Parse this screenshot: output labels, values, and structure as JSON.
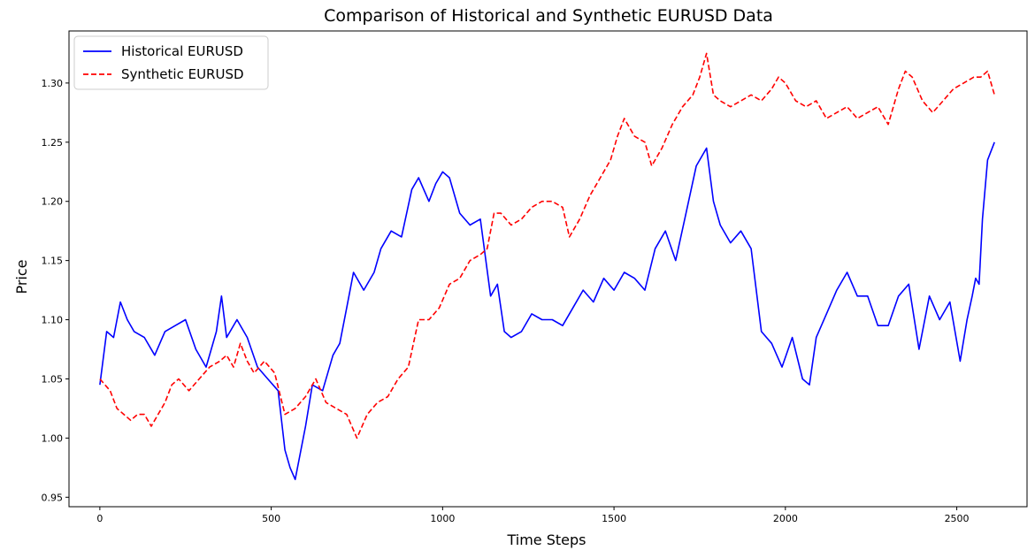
{
  "chart_data": {
    "type": "line",
    "title": "Comparison of Historical and Synthetic EURUSD Data",
    "xlabel": "Time Steps",
    "ylabel": "Price",
    "xlim": [
      -90,
      2705
    ],
    "ylim": [
      0.942,
      1.344
    ],
    "xticks": [
      0,
      500,
      1000,
      1500,
      2000,
      2500
    ],
    "xtick_labels": [
      "0",
      "500",
      "1000",
      "1500",
      "2000",
      "2500"
    ],
    "yticks": [
      0.95,
      1.0,
      1.05,
      1.1,
      1.15,
      1.2,
      1.25,
      1.3
    ],
    "ytick_labels": [
      "0.95",
      "1.00",
      "1.05",
      "1.10",
      "1.15",
      "1.20",
      "1.25",
      "1.30"
    ],
    "grid": false,
    "legend_position": "top-left",
    "series": [
      {
        "name": "Historical EURUSD",
        "color": "#0000ff",
        "style": "solid",
        "x": [
          0,
          20,
          40,
          60,
          80,
          100,
          130,
          160,
          190,
          220,
          250,
          280,
          310,
          340,
          355,
          370,
          400,
          430,
          460,
          490,
          520,
          540,
          555,
          570,
          600,
          620,
          650,
          680,
          700,
          720,
          740,
          770,
          800,
          820,
          850,
          880,
          910,
          930,
          960,
          980,
          1000,
          1020,
          1050,
          1080,
          1110,
          1140,
          1160,
          1180,
          1200,
          1230,
          1260,
          1290,
          1320,
          1350,
          1380,
          1410,
          1440,
          1470,
          1500,
          1530,
          1560,
          1590,
          1620,
          1650,
          1680,
          1710,
          1740,
          1770,
          1790,
          1810,
          1840,
          1870,
          1900,
          1930,
          1960,
          1990,
          2020,
          2050,
          2070,
          2090,
          2120,
          2150,
          2180,
          2210,
          2240,
          2270,
          2300,
          2330,
          2360,
          2390,
          2420,
          2450,
          2480,
          2510,
          2530,
          2545,
          2555,
          2565,
          2575,
          2590,
          2610
        ],
        "y": [
          1.045,
          1.09,
          1.085,
          1.115,
          1.1,
          1.09,
          1.085,
          1.07,
          1.09,
          1.095,
          1.1,
          1.075,
          1.06,
          1.09,
          1.12,
          1.085,
          1.1,
          1.085,
          1.06,
          1.05,
          1.04,
          0.99,
          0.975,
          0.965,
          1.01,
          1.045,
          1.04,
          1.07,
          1.08,
          1.11,
          1.14,
          1.125,
          1.14,
          1.16,
          1.175,
          1.17,
          1.21,
          1.22,
          1.2,
          1.215,
          1.225,
          1.22,
          1.19,
          1.18,
          1.185,
          1.12,
          1.13,
          1.09,
          1.085,
          1.09,
          1.105,
          1.1,
          1.1,
          1.095,
          1.11,
          1.125,
          1.115,
          1.135,
          1.125,
          1.14,
          1.135,
          1.125,
          1.16,
          1.175,
          1.15,
          1.19,
          1.23,
          1.245,
          1.2,
          1.18,
          1.165,
          1.175,
          1.16,
          1.09,
          1.08,
          1.06,
          1.085,
          1.05,
          1.045,
          1.085,
          1.105,
          1.125,
          1.14,
          1.12,
          1.12,
          1.095,
          1.095,
          1.12,
          1.13,
          1.075,
          1.12,
          1.1,
          1.115,
          1.065,
          1.1,
          1.12,
          1.135,
          1.13,
          1.185,
          1.235,
          1.25
        ]
      },
      {
        "name": "Synthetic EURUSD",
        "color": "#ff0000",
        "style": "dashed",
        "x": [
          0,
          15,
          30,
          50,
          70,
          90,
          110,
          130,
          150,
          170,
          190,
          210,
          230,
          260,
          290,
          320,
          350,
          370,
          390,
          410,
          430,
          450,
          480,
          510,
          540,
          570,
          600,
          630,
          660,
          690,
          720,
          750,
          780,
          810,
          840,
          870,
          900,
          930,
          960,
          990,
          1020,
          1050,
          1080,
          1110,
          1130,
          1150,
          1170,
          1200,
          1230,
          1260,
          1290,
          1320,
          1350,
          1370,
          1400,
          1430,
          1460,
          1490,
          1510,
          1530,
          1560,
          1590,
          1610,
          1640,
          1670,
          1700,
          1730,
          1750,
          1770,
          1790,
          1810,
          1840,
          1870,
          1900,
          1930,
          1960,
          1980,
          2000,
          2030,
          2060,
          2090,
          2120,
          2150,
          2180,
          2210,
          2240,
          2270,
          2300,
          2330,
          2350,
          2370,
          2400,
          2430,
          2460,
          2490,
          2520,
          2550,
          2570,
          2590,
          2610
        ],
        "y": [
          1.05,
          1.045,
          1.04,
          1.025,
          1.02,
          1.015,
          1.02,
          1.02,
          1.01,
          1.02,
          1.03,
          1.045,
          1.05,
          1.04,
          1.05,
          1.06,
          1.065,
          1.07,
          1.06,
          1.08,
          1.065,
          1.055,
          1.065,
          1.055,
          1.02,
          1.025,
          1.035,
          1.05,
          1.03,
          1.025,
          1.02,
          1.0,
          1.02,
          1.03,
          1.035,
          1.05,
          1.06,
          1.1,
          1.1,
          1.11,
          1.13,
          1.135,
          1.15,
          1.155,
          1.16,
          1.19,
          1.19,
          1.18,
          1.185,
          1.195,
          1.2,
          1.2,
          1.195,
          1.17,
          1.185,
          1.205,
          1.22,
          1.235,
          1.255,
          1.27,
          1.255,
          1.25,
          1.23,
          1.245,
          1.265,
          1.28,
          1.29,
          1.305,
          1.325,
          1.29,
          1.285,
          1.28,
          1.285,
          1.29,
          1.285,
          1.295,
          1.305,
          1.3,
          1.285,
          1.28,
          1.285,
          1.27,
          1.275,
          1.28,
          1.27,
          1.275,
          1.28,
          1.265,
          1.295,
          1.31,
          1.305,
          1.285,
          1.275,
          1.285,
          1.295,
          1.3,
          1.305,
          1.305,
          1.31,
          1.29
        ]
      }
    ]
  }
}
